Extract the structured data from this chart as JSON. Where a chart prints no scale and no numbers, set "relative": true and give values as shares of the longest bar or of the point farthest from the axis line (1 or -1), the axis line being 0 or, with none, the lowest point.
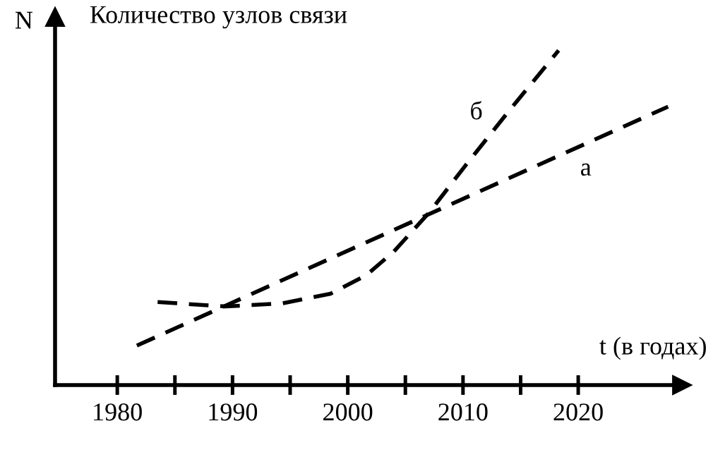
{
  "chart_data": {
    "type": "line",
    "title": "Количество узлов связи",
    "ylabel": "N",
    "xlabel": "t (в годах)",
    "relative": true,
    "line_style": "dashed",
    "marker": "none",
    "grid": false,
    "legend": false,
    "xlim": [
      1974.6,
      2029
    ],
    "xticks": [
      1980,
      {
        "value": 1985,
        "label": null
      },
      1990,
      {
        "value": 1995,
        "label": null
      },
      2000,
      {
        "value": 2005,
        "label": null
      },
      2010,
      {
        "value": 2015,
        "label": null
      },
      2020
    ],
    "series": [
      {
        "name": "а",
        "color": "#000000",
        "x": [
          1981.7,
          2027.8
        ],
        "values": [
          0.118,
          0.832
        ]
      },
      {
        "name": "б",
        "color": "#000000",
        "x": [
          1983.5,
          1989.4,
          1994.3,
          1998.5,
          2001.6,
          2004.0,
          2007.1,
          2010.1,
          2013.8,
          2018.3
        ],
        "values": [
          0.248,
          0.235,
          0.244,
          0.273,
          0.328,
          0.399,
          0.517,
          0.651,
          0.811,
          1.0
        ]
      }
    ]
  }
}
